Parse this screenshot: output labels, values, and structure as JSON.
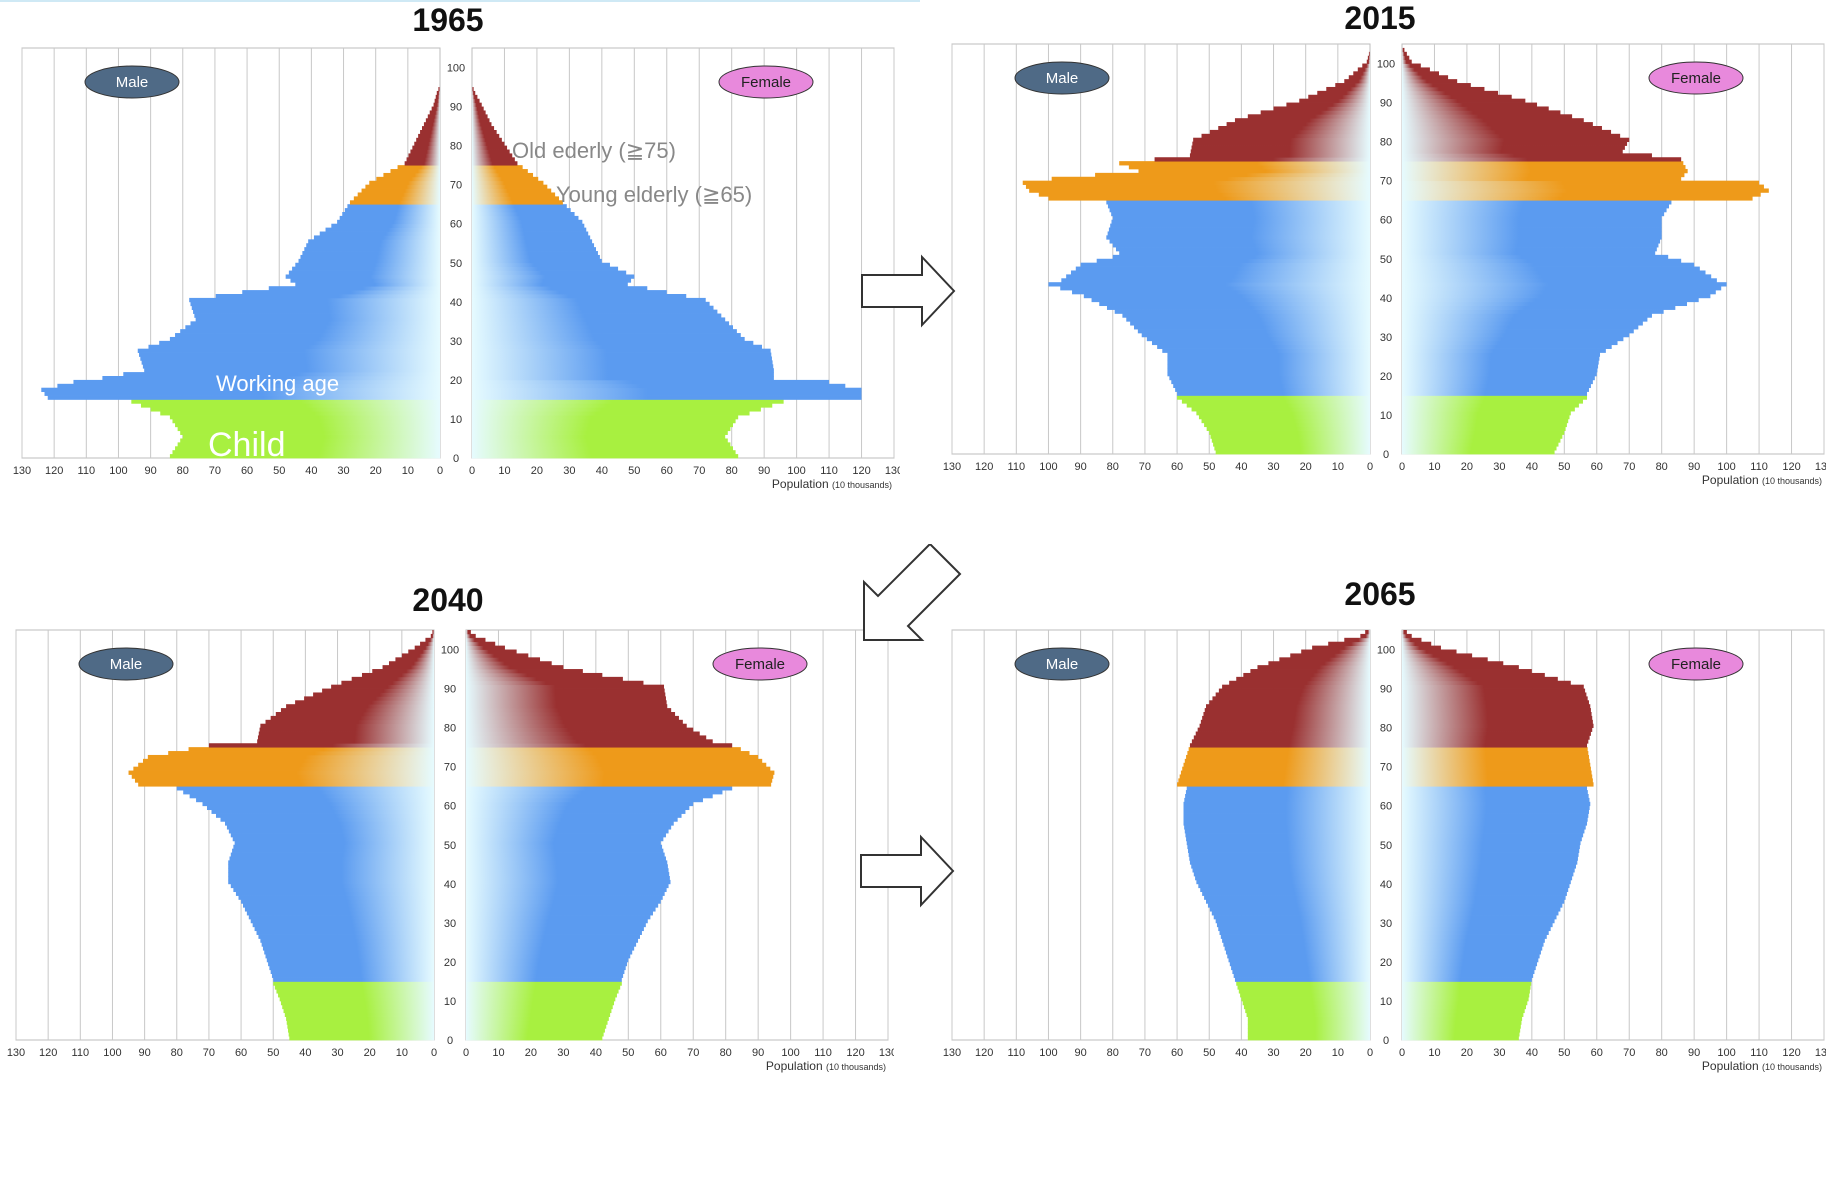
{
  "common": {
    "male_label": "Male",
    "female_label": "Female",
    "population_label": "Population",
    "population_unit": "(10 thousands)",
    "x_ticks": [
      130,
      120,
      110,
      100,
      90,
      80,
      70,
      60,
      50,
      40,
      30,
      20,
      10,
      0
    ],
    "age_ticks": [
      0,
      10,
      20,
      30,
      40,
      50,
      60,
      70,
      80,
      90,
      100
    ]
  },
  "colors": {
    "child": "#a8f040",
    "working": "#5b9bf0",
    "young_elderly": "#ee9a1a",
    "old_elderly": "#9a3030",
    "grid": "#c8c8c8",
    "male_pill": "#4f6a86",
    "female_pill": "#e889dc"
  },
  "chart_data": [
    {
      "type": "bar",
      "year": "1965",
      "x_unit": "10 thousands",
      "age_range": [
        0,
        105
      ],
      "xlim": [
        0,
        130
      ],
      "annotations": {
        "old_elderly": "Old ederly (≧75)",
        "young_elderly": "Young elderly (≧65)",
        "working": "Working age",
        "child": "Child"
      },
      "male": [
        [
          0,
          84
        ],
        [
          5,
          80
        ],
        [
          10,
          84
        ],
        [
          14,
          96
        ],
        [
          15,
          122
        ],
        [
          17,
          124
        ],
        [
          19,
          114
        ],
        [
          20,
          105
        ],
        [
          22,
          92
        ],
        [
          27,
          94
        ],
        [
          30,
          84
        ],
        [
          35,
          76
        ],
        [
          40,
          78
        ],
        [
          44,
          45
        ],
        [
          46,
          48
        ],
        [
          50,
          44
        ],
        [
          55,
          41
        ],
        [
          60,
          32
        ],
        [
          65,
          28
        ],
        [
          70,
          22
        ],
        [
          75,
          11
        ],
        [
          80,
          8
        ],
        [
          85,
          5
        ],
        [
          90,
          2
        ],
        [
          93,
          1
        ],
        [
          95,
          0
        ]
      ],
      "female": [
        [
          0,
          82
        ],
        [
          5,
          78
        ],
        [
          10,
          82
        ],
        [
          14,
          96
        ],
        [
          15,
          120
        ],
        [
          17,
          120
        ],
        [
          19,
          110
        ],
        [
          20,
          93
        ],
        [
          22,
          93
        ],
        [
          27,
          92
        ],
        [
          30,
          84
        ],
        [
          35,
          78
        ],
        [
          40,
          72
        ],
        [
          44,
          48
        ],
        [
          46,
          50
        ],
        [
          50,
          40
        ],
        [
          55,
          37
        ],
        [
          60,
          34
        ],
        [
          65,
          28
        ],
        [
          70,
          22
        ],
        [
          75,
          14
        ],
        [
          80,
          10
        ],
        [
          85,
          6
        ],
        [
          90,
          3
        ],
        [
          93,
          1
        ],
        [
          95,
          0
        ]
      ]
    },
    {
      "type": "bar",
      "year": "2015",
      "x_unit": "10 thousands",
      "age_range": [
        0,
        105
      ],
      "xlim": [
        0,
        130
      ],
      "male": [
        [
          0,
          48
        ],
        [
          5,
          50
        ],
        [
          10,
          54
        ],
        [
          14,
          60
        ],
        [
          15,
          60
        ],
        [
          20,
          63
        ],
        [
          25,
          63
        ],
        [
          30,
          71
        ],
        [
          35,
          77
        ],
        [
          40,
          89
        ],
        [
          43,
          100
        ],
        [
          44,
          96
        ],
        [
          48,
          90
        ],
        [
          50,
          80
        ],
        [
          51,
          78
        ],
        [
          55,
          82
        ],
        [
          60,
          80
        ],
        [
          64,
          82
        ],
        [
          65,
          100
        ],
        [
          67,
          106
        ],
        [
          69,
          108
        ],
        [
          70,
          99
        ],
        [
          72,
          72
        ],
        [
          74,
          78
        ],
        [
          76,
          56
        ],
        [
          80,
          55
        ],
        [
          85,
          42
        ],
        [
          90,
          22
        ],
        [
          95,
          8
        ],
        [
          100,
          1
        ],
        [
          103,
          0
        ]
      ],
      "female": [
        [
          0,
          47
        ],
        [
          5,
          50
        ],
        [
          10,
          52
        ],
        [
          14,
          57
        ],
        [
          15,
          57
        ],
        [
          20,
          60
        ],
        [
          25,
          61
        ],
        [
          30,
          70
        ],
        [
          35,
          77
        ],
        [
          40,
          95
        ],
        [
          43,
          100
        ],
        [
          44,
          97
        ],
        [
          48,
          90
        ],
        [
          50,
          82
        ],
        [
          51,
          78
        ],
        [
          55,
          80
        ],
        [
          60,
          80
        ],
        [
          64,
          83
        ],
        [
          65,
          108
        ],
        [
          67,
          113
        ],
        [
          69,
          110
        ],
        [
          70,
          86
        ],
        [
          72,
          88
        ],
        [
          75,
          86
        ],
        [
          77,
          68
        ],
        [
          80,
          70
        ],
        [
          85,
          56
        ],
        [
          90,
          38
        ],
        [
          95,
          17
        ],
        [
          100,
          3
        ],
        [
          104,
          0
        ]
      ]
    },
    {
      "type": "bar",
      "year": "2040",
      "x_unit": "10 thousands",
      "age_range": [
        0,
        105
      ],
      "xlim": [
        0,
        130
      ],
      "male": [
        [
          0,
          45
        ],
        [
          5,
          46
        ],
        [
          10,
          48
        ],
        [
          14,
          50
        ],
        [
          15,
          50
        ],
        [
          20,
          52
        ],
        [
          25,
          54
        ],
        [
          30,
          57
        ],
        [
          35,
          60
        ],
        [
          40,
          64
        ],
        [
          45,
          64
        ],
        [
          50,
          62
        ],
        [
          55,
          65
        ],
        [
          60,
          72
        ],
        [
          64,
          80
        ],
        [
          65,
          92
        ],
        [
          68,
          95
        ],
        [
          72,
          89
        ],
        [
          75,
          70
        ],
        [
          76,
          55
        ],
        [
          80,
          54
        ],
        [
          85,
          46
        ],
        [
          90,
          32
        ],
        [
          95,
          16
        ],
        [
          100,
          6
        ],
        [
          103,
          1
        ],
        [
          105,
          0
        ]
      ],
      "female": [
        [
          0,
          42
        ],
        [
          5,
          44
        ],
        [
          10,
          46
        ],
        [
          14,
          48
        ],
        [
          15,
          48
        ],
        [
          20,
          50
        ],
        [
          25,
          53
        ],
        [
          30,
          56
        ],
        [
          35,
          60
        ],
        [
          40,
          63
        ],
        [
          45,
          62
        ],
        [
          50,
          60
        ],
        [
          55,
          64
        ],
        [
          60,
          70
        ],
        [
          64,
          82
        ],
        [
          65,
          94
        ],
        [
          68,
          95
        ],
        [
          72,
          90
        ],
        [
          75,
          82
        ],
        [
          76,
          76
        ],
        [
          80,
          68
        ],
        [
          85,
          62
        ],
        [
          90,
          61
        ],
        [
          93,
          42
        ],
        [
          95,
          30
        ],
        [
          100,
          12
        ],
        [
          103,
          3
        ],
        [
          105,
          0
        ]
      ]
    },
    {
      "type": "bar",
      "year": "2065",
      "x_unit": "10 thousands",
      "age_range": [
        0,
        105
      ],
      "xlim": [
        0,
        130
      ],
      "male": [
        [
          0,
          38
        ],
        [
          5,
          38
        ],
        [
          10,
          40
        ],
        [
          15,
          42
        ],
        [
          20,
          44
        ],
        [
          25,
          46
        ],
        [
          30,
          48
        ],
        [
          35,
          51
        ],
        [
          40,
          54
        ],
        [
          45,
          56
        ],
        [
          50,
          57
        ],
        [
          55,
          58
        ],
        [
          60,
          58
        ],
        [
          64,
          57
        ],
        [
          65,
          60
        ],
        [
          70,
          58
        ],
        [
          75,
          56
        ],
        [
          80,
          53
        ],
        [
          85,
          51
        ],
        [
          90,
          46
        ],
        [
          95,
          35
        ],
        [
          100,
          18
        ],
        [
          103,
          3
        ],
        [
          105,
          0
        ]
      ],
      "female": [
        [
          0,
          36
        ],
        [
          5,
          37
        ],
        [
          10,
          39
        ],
        [
          15,
          40
        ],
        [
          20,
          42
        ],
        [
          25,
          44
        ],
        [
          30,
          47
        ],
        [
          35,
          50
        ],
        [
          40,
          52
        ],
        [
          45,
          54
        ],
        [
          50,
          55
        ],
        [
          55,
          57
        ],
        [
          60,
          58
        ],
        [
          64,
          57
        ],
        [
          65,
          59
        ],
        [
          70,
          58
        ],
        [
          75,
          57
        ],
        [
          80,
          59
        ],
        [
          85,
          58
        ],
        [
          90,
          56
        ],
        [
          95,
          36
        ],
        [
          100,
          12
        ],
        [
          103,
          3
        ],
        [
          105,
          0
        ]
      ]
    }
  ],
  "arrows": [
    {
      "direction": "right"
    },
    {
      "direction": "down-left"
    },
    {
      "direction": "right"
    }
  ]
}
